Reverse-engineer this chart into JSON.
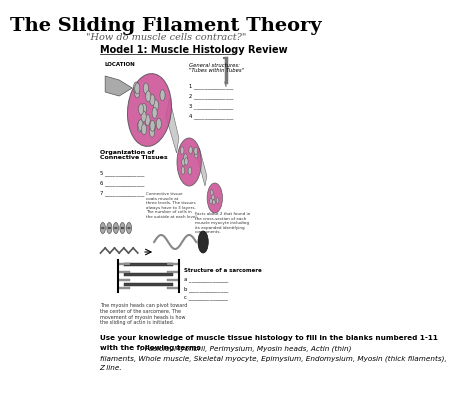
{
  "title": "The Sliding Filament Theory",
  "subtitle": "\"How do muscle cells contract?\"",
  "model_label": "Model 1: Muscle Histology Review",
  "bottom_bold1": "Use your knowledge of muscle tissue histology to fill in the blanks numbered 1-11",
  "bottom_bold2": "with the following terms",
  "bottom_italic": ": Fasicle, Myofibril, Perimysium, Myosin heads, Actin (thin)",
  "bottom_line2": "filaments, Whole muscle, Skeletal myocyte, Epimysium, Endomysium, Myosin (thick filaments),",
  "bottom_line3": "Z line.",
  "location_label": "LOCATION",
  "org_label": "Organization of\nConnective Tissues",
  "general_struct_label": "General structures:\n\"Tubes within Tubes\"",
  "sarcomere_label": "Structure of a sarcomere",
  "bg_color": "#ffffff",
  "title_fontsize": 14,
  "subtitle_fontsize": 7,
  "model_fontsize": 7,
  "pink_color": "#cc5599",
  "gray_color": "#888888",
  "dark_gray": "#444444",
  "light_gray": "#cccccc"
}
